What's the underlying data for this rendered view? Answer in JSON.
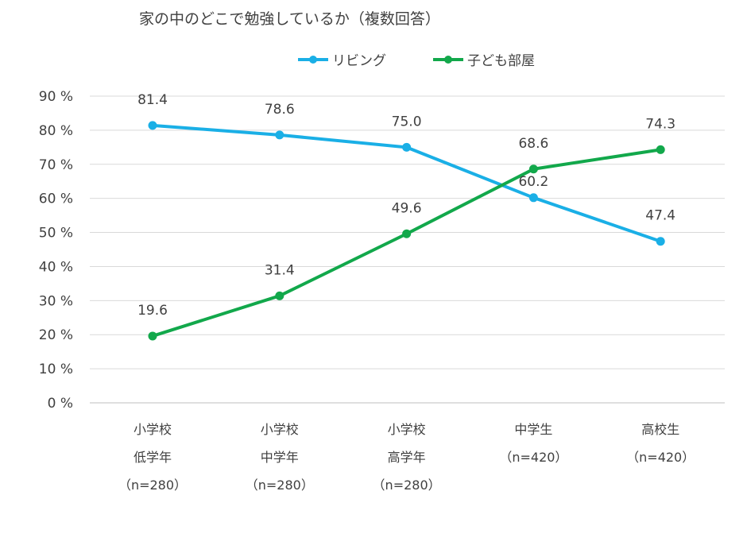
{
  "chart_data": {
    "type": "line",
    "title": "家の中のどこで勉強しているか（複数回答）",
    "categories": [
      [
        "小学校",
        "低学年",
        "（n=280）"
      ],
      [
        "小学校",
        "中学年",
        "（n=280）"
      ],
      [
        "小学校",
        "高学年",
        "（n=280）"
      ],
      [
        "中学生",
        "（n=420）"
      ],
      [
        "高校生",
        "（n=420）"
      ]
    ],
    "series": [
      {
        "name": "リビング",
        "color": "#1AAFE6",
        "values": [
          81.4,
          78.6,
          75.0,
          60.2,
          47.4
        ],
        "labels": [
          "81.4",
          "78.6",
          "75.0",
          "60.2",
          "47.4"
        ]
      },
      {
        "name": "子ども部屋",
        "color": "#12A84B",
        "values": [
          19.6,
          31.4,
          49.6,
          68.6,
          74.3
        ],
        "labels": [
          "19.6",
          "31.4",
          "49.6",
          "68.6",
          "74.3"
        ]
      }
    ],
    "ylim": [
      0,
      90
    ],
    "yticks": [
      "0 %",
      "10 %",
      "20 %",
      "30 %",
      "40 %",
      "50 %",
      "60 %",
      "70 %",
      "80 %",
      "90 %"
    ],
    "grid": true,
    "legend": "top"
  }
}
